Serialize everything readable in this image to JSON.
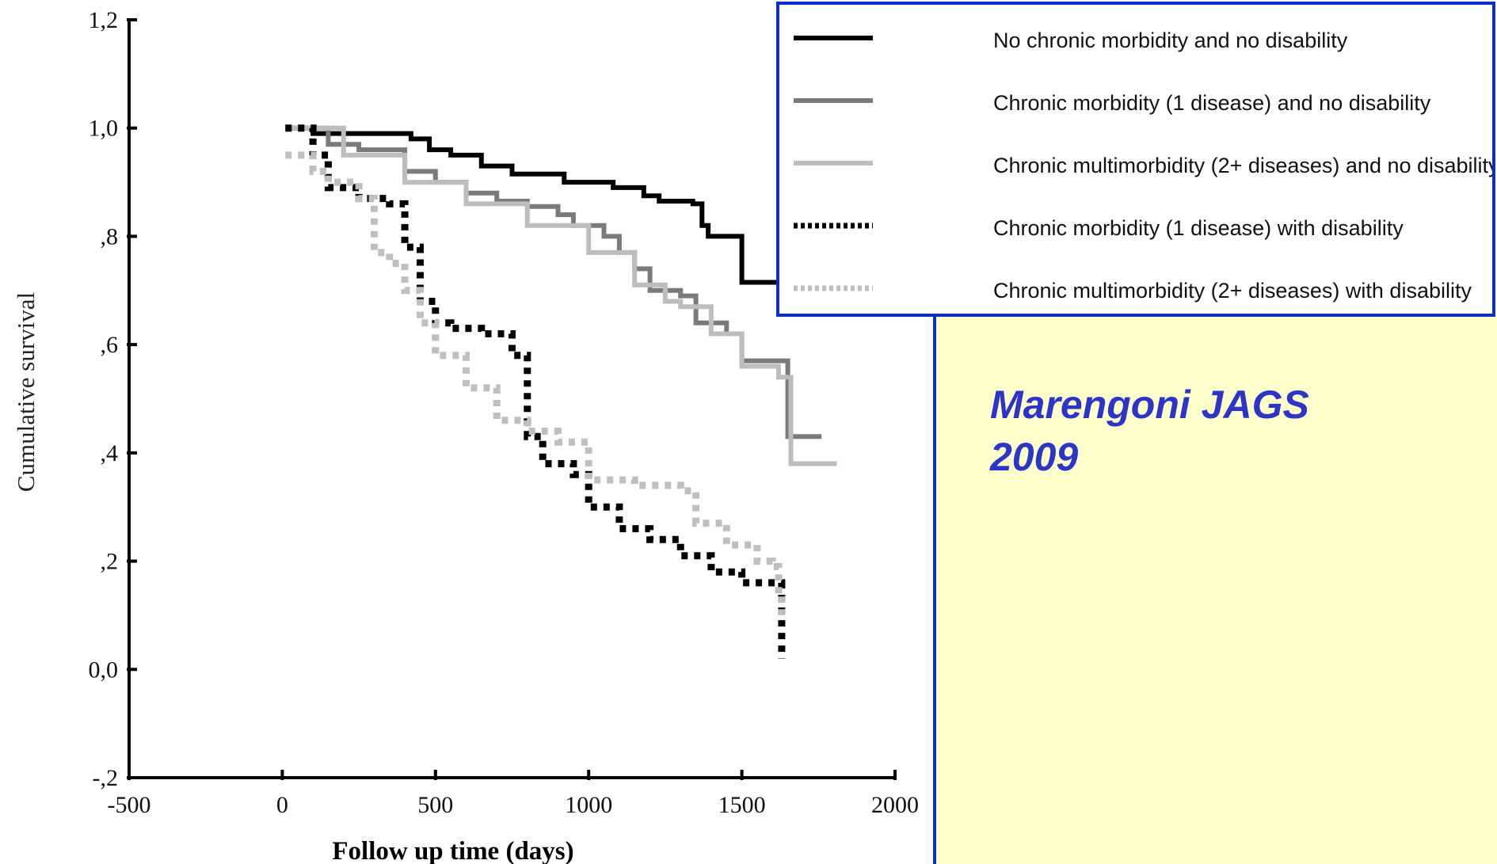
{
  "chart_data": {
    "type": "line",
    "title": "",
    "xlabel": "Follow up time (days)",
    "ylabel": "Cumulative survival",
    "xlim": [
      -500,
      2000
    ],
    "ylim": [
      -0.2,
      1.2
    ],
    "x_ticks": [
      -500,
      0,
      500,
      1000,
      1500,
      2000
    ],
    "x_tick_labels": [
      "-500",
      "0",
      "500",
      "1000",
      "1500",
      "2000"
    ],
    "y_ticks": [
      -0.2,
      0.0,
      0.2,
      0.4,
      0.6,
      0.8,
      1.0,
      1.2
    ],
    "y_tick_labels": [
      "-,2",
      "0,0",
      ",2",
      ",4",
      ",6",
      ",8",
      "1,0",
      "1,2"
    ],
    "grid": false,
    "legend_position": "top-right",
    "series": [
      {
        "name": "No chronic morbidity and no disability",
        "color": "#000000",
        "style": "solid",
        "points": [
          [
            10,
            1.0
          ],
          [
            100,
            0.99
          ],
          [
            400,
            0.99
          ],
          [
            420,
            0.98
          ],
          [
            480,
            0.96
          ],
          [
            550,
            0.95
          ],
          [
            650,
            0.93
          ],
          [
            750,
            0.915
          ],
          [
            920,
            0.9
          ],
          [
            1080,
            0.89
          ],
          [
            1180,
            0.875
          ],
          [
            1230,
            0.865
          ],
          [
            1340,
            0.86
          ],
          [
            1370,
            0.82
          ],
          [
            1390,
            0.8
          ],
          [
            1500,
            0.8
          ],
          [
            1500,
            0.715
          ],
          [
            1650,
            0.715
          ]
        ]
      },
      {
        "name": "Chronic morbidity (1 disease) and no disability",
        "color": "#7a7a7a",
        "style": "solid",
        "points": [
          [
            10,
            1.0
          ],
          [
            150,
            0.97
          ],
          [
            250,
            0.96
          ],
          [
            400,
            0.92
          ],
          [
            500,
            0.9
          ],
          [
            600,
            0.88
          ],
          [
            700,
            0.865
          ],
          [
            800,
            0.855
          ],
          [
            900,
            0.84
          ],
          [
            950,
            0.82
          ],
          [
            1050,
            0.8
          ],
          [
            1100,
            0.77
          ],
          [
            1150,
            0.74
          ],
          [
            1200,
            0.7
          ],
          [
            1300,
            0.69
          ],
          [
            1350,
            0.64
          ],
          [
            1450,
            0.62
          ],
          [
            1500,
            0.57
          ],
          [
            1620,
            0.57
          ],
          [
            1650,
            0.43
          ],
          [
            1760,
            0.43
          ]
        ]
      },
      {
        "name": "Chronic multimorbidity (2+ diseases) and no disability",
        "color": "#bdbdbd",
        "style": "solid",
        "points": [
          [
            10,
            1.0
          ],
          [
            200,
            0.95
          ],
          [
            400,
            0.9
          ],
          [
            600,
            0.86
          ],
          [
            800,
            0.82
          ],
          [
            1000,
            0.77
          ],
          [
            1150,
            0.71
          ],
          [
            1250,
            0.68
          ],
          [
            1300,
            0.67
          ],
          [
            1400,
            0.62
          ],
          [
            1500,
            0.56
          ],
          [
            1620,
            0.54
          ],
          [
            1660,
            0.38
          ],
          [
            1810,
            0.38
          ]
        ]
      },
      {
        "name": "Chronic morbidity (1 disease) with disability",
        "color": "#000000",
        "style": "dotted",
        "points": [
          [
            10,
            1.0
          ],
          [
            100,
            0.95
          ],
          [
            150,
            0.89
          ],
          [
            250,
            0.87
          ],
          [
            350,
            0.86
          ],
          [
            400,
            0.78
          ],
          [
            450,
            0.68
          ],
          [
            500,
            0.64
          ],
          [
            550,
            0.63
          ],
          [
            650,
            0.62
          ],
          [
            750,
            0.58
          ],
          [
            800,
            0.43
          ],
          [
            850,
            0.38
          ],
          [
            950,
            0.36
          ],
          [
            1000,
            0.3
          ],
          [
            1100,
            0.26
          ],
          [
            1200,
            0.24
          ],
          [
            1300,
            0.21
          ],
          [
            1400,
            0.18
          ],
          [
            1500,
            0.16
          ],
          [
            1630,
            0.15
          ],
          [
            1630,
            0.02
          ]
        ]
      },
      {
        "name": "Chronic multimorbidity (2+ diseases) with disability",
        "color": "#bfbfbf",
        "style": "dotted",
        "points": [
          [
            10,
            0.95
          ],
          [
            100,
            0.92
          ],
          [
            150,
            0.9
          ],
          [
            250,
            0.87
          ],
          [
            300,
            0.77
          ],
          [
            350,
            0.75
          ],
          [
            400,
            0.7
          ],
          [
            450,
            0.64
          ],
          [
            500,
            0.58
          ],
          [
            600,
            0.52
          ],
          [
            700,
            0.46
          ],
          [
            800,
            0.44
          ],
          [
            900,
            0.42
          ],
          [
            1000,
            0.35
          ],
          [
            1150,
            0.34
          ],
          [
            1300,
            0.33
          ],
          [
            1350,
            0.27
          ],
          [
            1450,
            0.23
          ],
          [
            1550,
            0.2
          ],
          [
            1600,
            0.19
          ],
          [
            1620,
            0.14
          ],
          [
            1630,
            0.1
          ]
        ]
      }
    ]
  },
  "citation": "Marengoni  JAGS\n2009"
}
